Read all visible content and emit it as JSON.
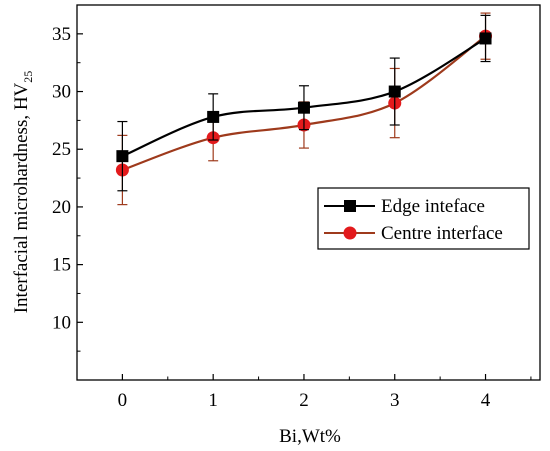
{
  "chart_data": {
    "type": "line",
    "xlabel": "Bi,Wt%",
    "ylabel_main": "Interfacial microhardness, HV",
    "ylabel_sub": "25",
    "x": [
      0,
      1,
      2,
      3,
      4
    ],
    "xticks": [
      "0",
      "1",
      "2",
      "3",
      "4"
    ],
    "yticks": [
      "10",
      "15",
      "20",
      "25",
      "30",
      "35"
    ],
    "xlim": [
      -0.5,
      4.6
    ],
    "ylim": [
      5,
      37.5
    ],
    "legend_position": "center-right",
    "series": [
      {
        "name": "Edge inteface",
        "marker": "square",
        "color": "#000000",
        "marker_color": "#000000",
        "values": [
          24.4,
          27.8,
          28.6,
          30.0,
          34.6
        ],
        "error": [
          3.0,
          2.0,
          1.9,
          2.9,
          2.0
        ]
      },
      {
        "name": "Centre interface",
        "marker": "circle",
        "color": "#9e3a1c",
        "marker_color": "#e31a1c",
        "values": [
          23.2,
          26.0,
          27.1,
          29.0,
          34.8
        ],
        "error": [
          3.0,
          2.0,
          2.0,
          3.0,
          2.0
        ]
      }
    ]
  }
}
